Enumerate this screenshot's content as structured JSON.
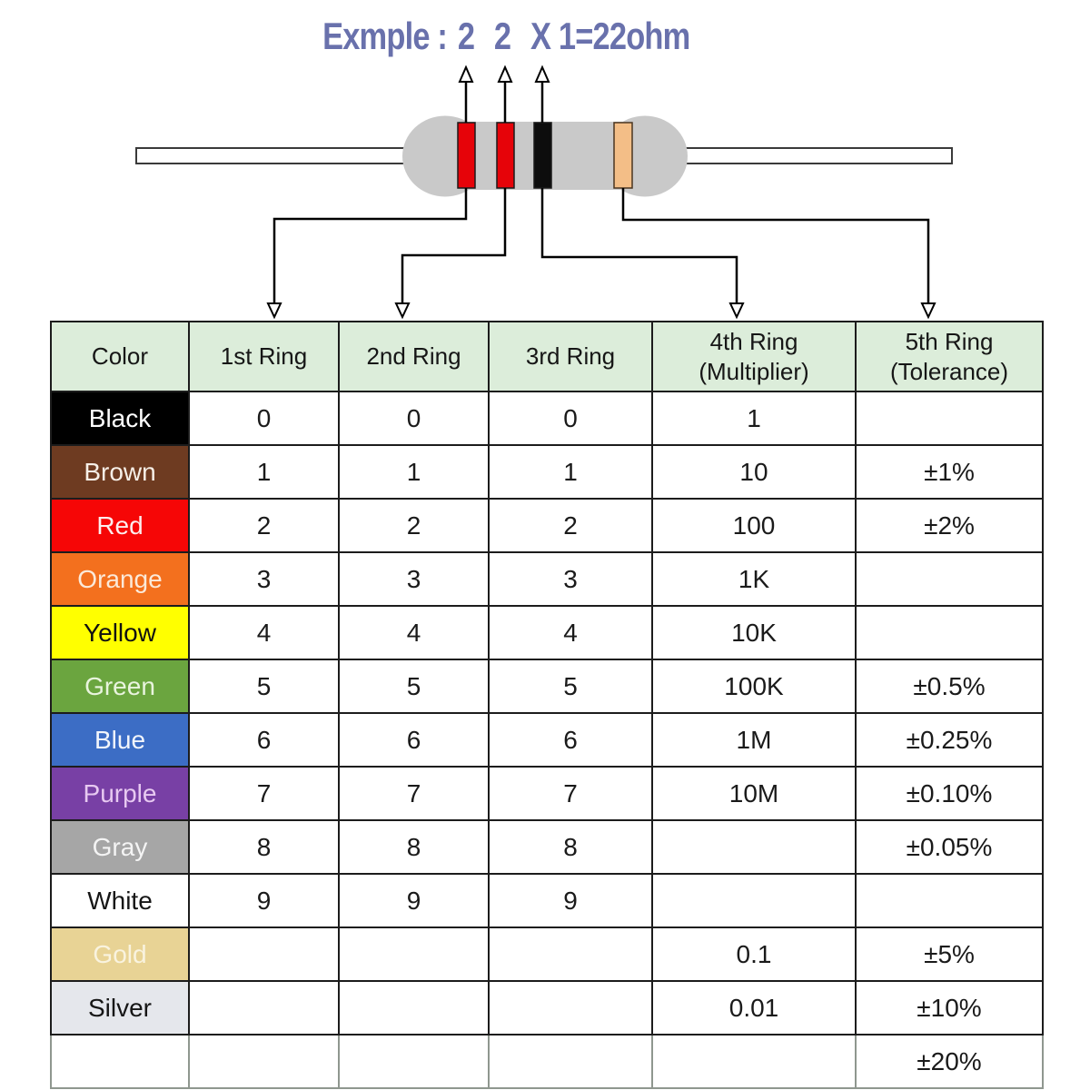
{
  "title": {
    "prefix": "Exmple :",
    "digit1": "2",
    "digit2": "2",
    "multiplier": "X 1",
    "equals": "=22ohm",
    "color": "#6971AC"
  },
  "resistor": {
    "body_color": "#C9C9C9",
    "lead_fill": "#FFFFFF",
    "lead_stroke": "#3a3a3a",
    "bands": [
      {
        "position": "1st",
        "color_name": "Red",
        "hex": "#E60309"
      },
      {
        "position": "2nd",
        "color_name": "Red",
        "hex": "#E60309"
      },
      {
        "position": "3rd",
        "color_name": "Black",
        "hex": "#0d0d0d"
      },
      {
        "position": "4th",
        "color_name": "Gold",
        "hex": "#F3BE87"
      }
    ]
  },
  "table": {
    "header_bg": "#DCEDDA",
    "columns": [
      {
        "key": "color",
        "label": "Color",
        "sub": ""
      },
      {
        "key": "ring1",
        "label": "1st Ring",
        "sub": ""
      },
      {
        "key": "ring2",
        "label": "2nd Ring",
        "sub": ""
      },
      {
        "key": "ring3",
        "label": "3rd Ring",
        "sub": ""
      },
      {
        "key": "multiplier",
        "label": "4th Ring",
        "sub": "(Multiplier)"
      },
      {
        "key": "tolerance",
        "label": "5th Ring",
        "sub": "(Tolerance)"
      }
    ],
    "rows": [
      {
        "name": "Black",
        "bg": "#000000",
        "fg": "#FFFFFF",
        "ring1": "0",
        "ring2": "0",
        "ring3": "0",
        "multiplier": "1",
        "tolerance": ""
      },
      {
        "name": "Brown",
        "bg": "#6E3B21",
        "fg": "#F6EFE7",
        "ring1": "1",
        "ring2": "1",
        "ring3": "1",
        "multiplier": "10",
        "tolerance": "±1%"
      },
      {
        "name": "Red",
        "bg": "#F60606",
        "fg": "#FDEDED",
        "ring1": "2",
        "ring2": "2",
        "ring3": "2",
        "multiplier": "100",
        "tolerance": "±2%"
      },
      {
        "name": "Orange",
        "bg": "#F3701E",
        "fg": "#FBE9D9",
        "ring1": "3",
        "ring2": "3",
        "ring3": "3",
        "multiplier": "1K",
        "tolerance": ""
      },
      {
        "name": "Yellow",
        "bg": "#FFFF00",
        "fg": "#111111",
        "ring1": "4",
        "ring2": "4",
        "ring3": "4",
        "multiplier": "10K",
        "tolerance": ""
      },
      {
        "name": "Green",
        "bg": "#6BA53F",
        "fg": "#E9F4DE",
        "ring1": "5",
        "ring2": "5",
        "ring3": "5",
        "multiplier": "100K",
        "tolerance": "±0.5%"
      },
      {
        "name": "Blue",
        "bg": "#3C6DC5",
        "fg": "#F2F5FB",
        "ring1": "6",
        "ring2": "6",
        "ring3": "6",
        "multiplier": "1M",
        "tolerance": "±0.25%"
      },
      {
        "name": "Purple",
        "bg": "#7840A5",
        "fg": "#E7C9F1",
        "ring1": "7",
        "ring2": "7",
        "ring3": "7",
        "multiplier": "10M",
        "tolerance": "±0.10%"
      },
      {
        "name": "Gray",
        "bg": "#A6A6A6",
        "fg": "#F4F4F4",
        "ring1": "8",
        "ring2": "8",
        "ring3": "8",
        "multiplier": "",
        "tolerance": "±0.05%"
      },
      {
        "name": "White",
        "bg": "#FFFFFF",
        "fg": "#161616",
        "ring1": "9",
        "ring2": "9",
        "ring3": "9",
        "multiplier": "",
        "tolerance": ""
      },
      {
        "name": "Gold",
        "bg": "#E8D395",
        "fg": "#F9F3DF",
        "ring1": "",
        "ring2": "",
        "ring3": "",
        "multiplier": "0.1",
        "tolerance": "±5%"
      },
      {
        "name": "Silver",
        "bg": "#E5E7EC",
        "fg": "#161616",
        "ring1": "",
        "ring2": "",
        "ring3": "",
        "multiplier": "0.01",
        "tolerance": "±10%"
      },
      {
        "name": "",
        "bg": "#FFFFFF",
        "fg": "#161616",
        "ring1": "",
        "ring2": "",
        "ring3": "",
        "multiplier": "",
        "tolerance": "±20%"
      }
    ]
  }
}
